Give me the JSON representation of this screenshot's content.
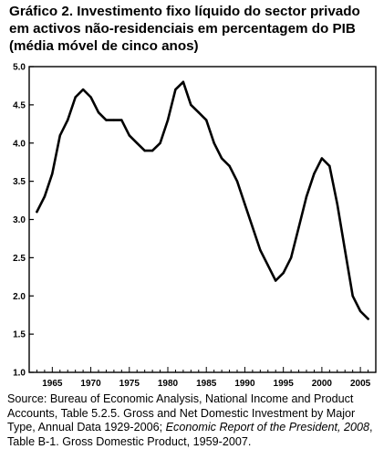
{
  "title_lines": [
    "Gráfico 2.  Investimento fixo líquido do sector privado",
    "em activos não-residenciais em percentagem do PIB",
    "(média móvel de cinco anos)"
  ],
  "source": {
    "part1": "Source: Bureau of Economic Analysis, National Income and Product Accounts, Table 5.2.5. Gross and Net Domestic Investment by Major Type, Annual Data 1929-2006; ",
    "part2": "Economic Report of the President, 2008",
    "part3": ", Table B-1. Gross Domestic Product, 1959-2007."
  },
  "chart_data": {
    "type": "line",
    "title": "Gráfico 2.  Investimento fixo líquido do sector privado em activos não-residenciais em percentagem do PIB (média móvel de cinco anos)",
    "xlabel": "",
    "ylabel": "",
    "xlim": [
      1962,
      2007
    ],
    "ylim": [
      1.0,
      5.0
    ],
    "x_ticks": [
      "1965",
      "1970",
      "1975",
      "1980",
      "1985",
      "1990",
      "1995",
      "2000",
      "2005"
    ],
    "y_ticks": [
      "1.0",
      "1.5",
      "2.0",
      "2.5",
      "3.0",
      "3.5",
      "4.0",
      "4.5",
      "5.0"
    ],
    "grid": false,
    "line_color": "#000000",
    "series": [
      {
        "x": [
          1963,
          1964,
          1965,
          1966,
          1967,
          1968,
          1969,
          1970,
          1971,
          1972,
          1973,
          1974,
          1975,
          1976,
          1977,
          1978,
          1979,
          1980,
          1981,
          1982,
          1983,
          1984,
          1985,
          1986,
          1987,
          1988,
          1989,
          1990,
          1991,
          1992,
          1993,
          1994,
          1995,
          1996,
          1997,
          1998,
          1999,
          2000,
          2001,
          2002,
          2003,
          2004,
          2005,
          2006
        ],
        "values": [
          3.1,
          3.3,
          3.6,
          4.1,
          4.3,
          4.6,
          4.7,
          4.6,
          4.4,
          4.3,
          4.3,
          4.3,
          4.1,
          4.0,
          3.9,
          3.9,
          4.0,
          4.3,
          4.7,
          4.8,
          4.5,
          4.4,
          4.3,
          4.0,
          3.8,
          3.7,
          3.5,
          3.2,
          2.9,
          2.6,
          2.4,
          2.2,
          2.3,
          2.5,
          2.9,
          3.3,
          3.6,
          3.8,
          3.7,
          3.2,
          2.6,
          2.0,
          1.8,
          1.7
        ]
      }
    ]
  }
}
